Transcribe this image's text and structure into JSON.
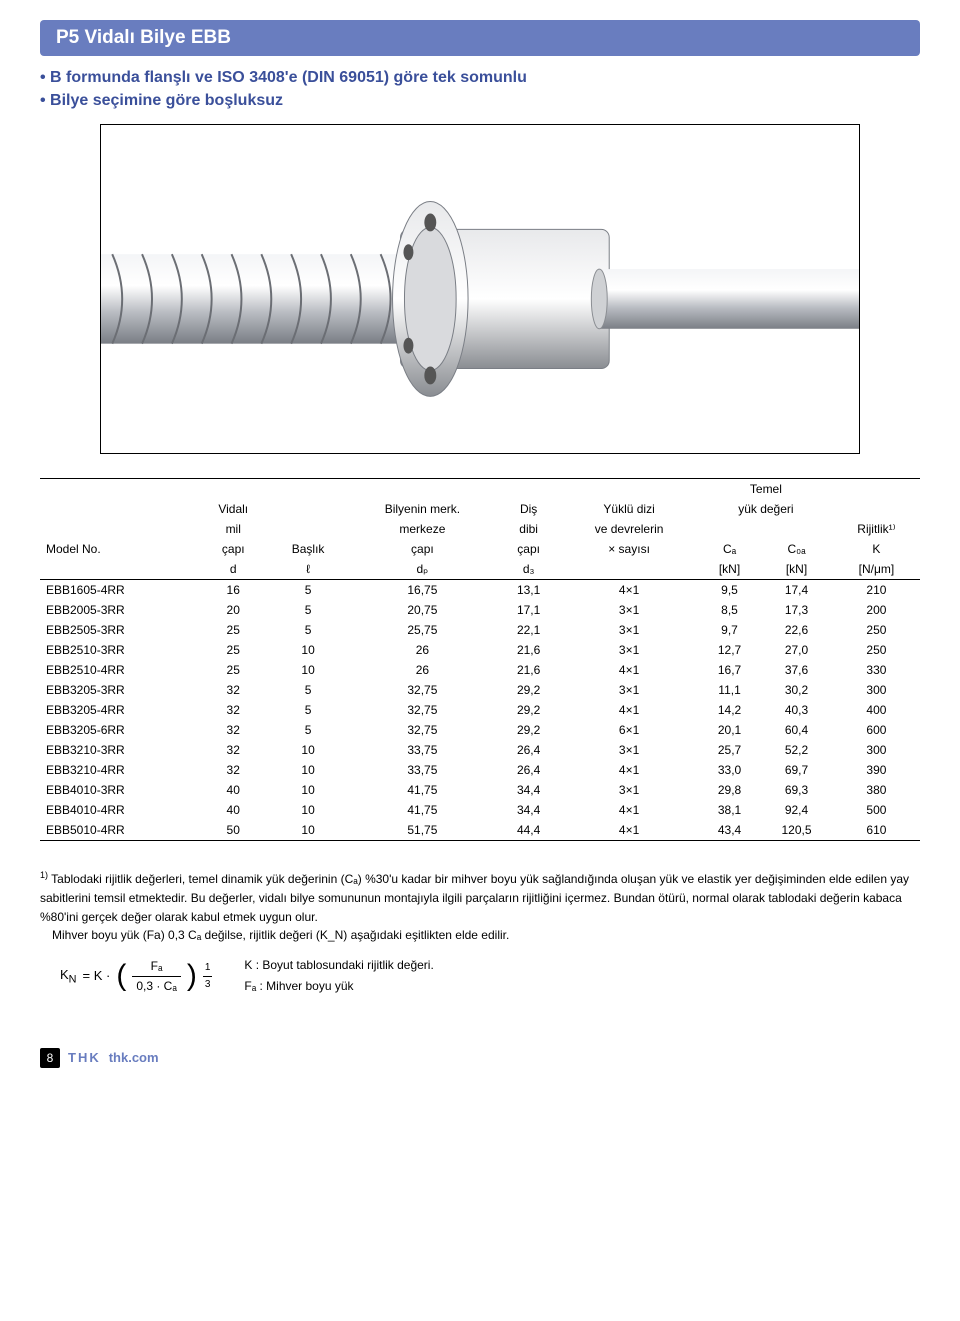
{
  "header": {
    "title": "P5 Vidalı Bilye  EBB",
    "bullets": [
      "• B formunda flanşlı ve ISO 3408'e (DIN 69051) göre tek somunlu",
      "• Bilye seçimine göre boşluksuz"
    ]
  },
  "table": {
    "th1": {
      "c6": "Temel"
    },
    "th2": {
      "c2": "Vidalı",
      "c3": "Bilyenin merk.",
      "c4": "Diş",
      "c5": "Yüklü dizi",
      "c6": "yük değeri"
    },
    "th3": {
      "c2": "mil",
      "c3": "merkeze",
      "c4": "dibi",
      "c5": "ve devrelerin",
      "c8": "Rijitlik¹⁾"
    },
    "th4": {
      "c1": "Model No.",
      "c2": "çapı",
      "cB": "Başlık",
      "c3": "çapı",
      "c4": "çapı",
      "c5": "× sayısı",
      "c6": "Cₐ",
      "c7": "C₀ₐ",
      "c8": "K"
    },
    "th5": {
      "c2": "d",
      "cB": "ℓ",
      "c3": "dₚ",
      "c4": "d₃",
      "c6": "[kN]",
      "c7": "[kN]",
      "c8": "[N/μm]"
    },
    "rows": [
      [
        "EBB1605-4RR",
        "16",
        "5",
        "16,75",
        "13,1",
        "4×1",
        "9,5",
        "17,4",
        "210"
      ],
      [
        "EBB2005-3RR",
        "20",
        "5",
        "20,75",
        "17,1",
        "3×1",
        "8,5",
        "17,3",
        "200"
      ],
      [
        "EBB2505-3RR",
        "25",
        "5",
        "25,75",
        "22,1",
        "3×1",
        "9,7",
        "22,6",
        "250"
      ],
      [
        "EBB2510-3RR",
        "25",
        "10",
        "26",
        "21,6",
        "3×1",
        "12,7",
        "27,0",
        "250"
      ],
      [
        "EBB2510-4RR",
        "25",
        "10",
        "26",
        "21,6",
        "4×1",
        "16,7",
        "37,6",
        "330"
      ],
      [
        "EBB3205-3RR",
        "32",
        "5",
        "32,75",
        "29,2",
        "3×1",
        "11,1",
        "30,2",
        "300"
      ],
      [
        "EBB3205-4RR",
        "32",
        "5",
        "32,75",
        "29,2",
        "4×1",
        "14,2",
        "40,3",
        "400"
      ],
      [
        "EBB3205-6RR",
        "32",
        "5",
        "32,75",
        "29,2",
        "6×1",
        "20,1",
        "60,4",
        "600"
      ],
      [
        "EBB3210-3RR",
        "32",
        "10",
        "33,75",
        "26,4",
        "3×1",
        "25,7",
        "52,2",
        "300"
      ],
      [
        "EBB3210-4RR",
        "32",
        "10",
        "33,75",
        "26,4",
        "4×1",
        "33,0",
        "69,7",
        "390"
      ],
      [
        "EBB4010-3RR",
        "40",
        "10",
        "41,75",
        "34,4",
        "3×1",
        "29,8",
        "69,3",
        "380"
      ],
      [
        "EBB4010-4RR",
        "40",
        "10",
        "41,75",
        "34,4",
        "4×1",
        "38,1",
        "92,4",
        "500"
      ],
      [
        "EBB5010-4RR",
        "50",
        "10",
        "51,75",
        "44,4",
        "4×1",
        "43,4",
        "120,5",
        "610"
      ]
    ],
    "col_align": [
      "left",
      "center",
      "center",
      "center",
      "center",
      "center",
      "center",
      "center",
      "center"
    ],
    "border_color": "#000000"
  },
  "footnote": {
    "sup": "1)",
    "p1": "Tablodaki rijitlik değerleri, temel dinamik yük değerinin (Cₐ) %30'u kadar bir mihver boyu yük sağlandığında oluşan yük ve elastik yer değişiminden elde edilen yay sabitlerini temsil etmektedir. Bu değerler, vidalı bilye somununun montajıyla ilgili parçaların rijitliğini içermez. Bundan ötürü, normal olarak tablodaki değerin kabaca %80'ini gerçek değer olarak kabul etmek uygun olur.",
    "p2": "Mihver boyu yük (Fa) 0,3 Cₐ değilse, rijitlik değeri (K_N) aşağıdaki eşitlikten elde edilir.",
    "formula": {
      "lhs": "K",
      "lhs_sub": "N",
      "eq": "=  K ·",
      "num": "Fₐ",
      "den": "0,3 · Cₐ",
      "enum": "1",
      "eden": "3"
    },
    "legend_k": "K   : Boyut tablosundaki rijitlik değeri.",
    "legend_fa": "Fₐ  : Mihver boyu yük"
  },
  "footer": {
    "page_num": "8",
    "logo": "THK",
    "url": "thk.com"
  },
  "colors": {
    "brand": "#697dbf",
    "text": "#000000",
    "accent_text": "#3a4f9a"
  }
}
